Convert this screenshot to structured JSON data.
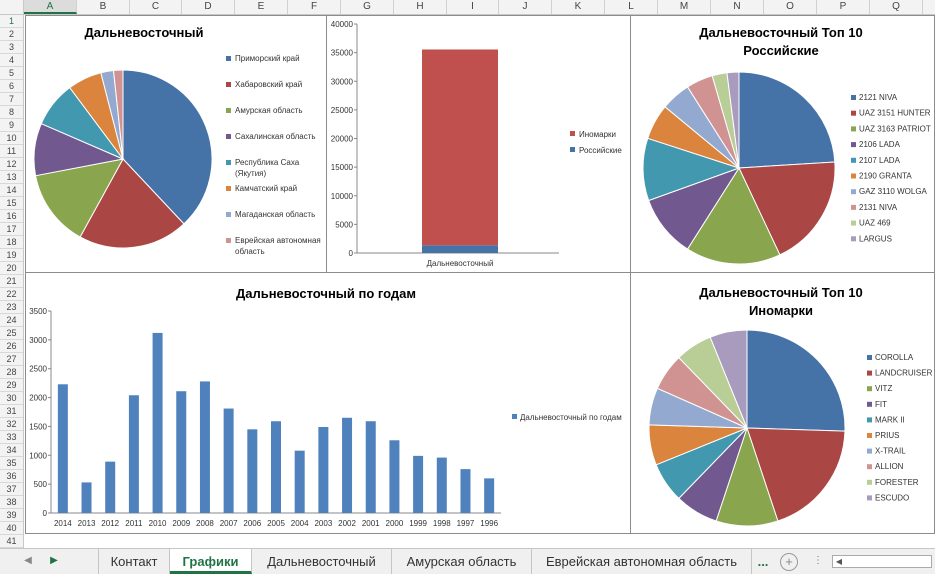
{
  "columns": [
    "A",
    "B",
    "C",
    "D",
    "E",
    "F",
    "G",
    "H",
    "I",
    "J",
    "K",
    "L",
    "M",
    "N",
    "O",
    "P",
    "Q"
  ],
  "rows": [
    "1",
    "2",
    "3",
    "4",
    "5",
    "6",
    "7",
    "8",
    "9",
    "10",
    "11",
    "12",
    "13",
    "14",
    "15",
    "16",
    "17",
    "18",
    "19",
    "20",
    "21",
    "22",
    "23",
    "24",
    "25",
    "26",
    "27",
    "28",
    "29",
    "30",
    "31",
    "32",
    "33",
    "34",
    "35",
    "36",
    "37",
    "38",
    "39",
    "40",
    "41"
  ],
  "tabs": {
    "items": [
      "Контакт",
      "Графики",
      "Дальневосточный",
      "Амурская область",
      "Еврейская автономная область"
    ],
    "active_index": 1,
    "more": "...",
    "add": "+"
  },
  "palette": [
    "#4572a7",
    "#aa4643",
    "#89a54e",
    "#71588f",
    "#4198af",
    "#db843d",
    "#93a9cf",
    "#d19392",
    "#b9cd96",
    "#a99bbd"
  ],
  "chart_data": [
    {
      "id": "pie-regions",
      "type": "pie",
      "title": "Дальневосточный",
      "labels": [
        "Приморский край",
        "Хабаровский край",
        "Амурская область",
        "Сахалинская область",
        "Республика Саха (Якутия)",
        "Камчатский край",
        "Магаданская область",
        "Еврейская автономная область"
      ],
      "legend_lines": [
        [
          "Приморский край"
        ],
        [
          "Хабаровский край"
        ],
        [
          "Амурская область"
        ],
        [
          "Сахалинская область"
        ],
        [
          "Республика Саха",
          "(Якутия)"
        ],
        [
          "Камчатский край"
        ],
        [
          "Магаданская область"
        ],
        [
          "Еврейская автономная",
          "область"
        ]
      ],
      "values": [
        38,
        20,
        14,
        9.5,
        8.3,
        6.2,
        2.3,
        1.7
      ]
    },
    {
      "id": "stacked-bar",
      "type": "bar",
      "categories": [
        "Дальневосточный"
      ],
      "series": [
        {
          "name": "Российские",
          "values": [
            1350
          ],
          "color": "#4572a7"
        },
        {
          "name": "Иномарки",
          "values": [
            34200
          ],
          "color": "#c0504d"
        }
      ],
      "legend": [
        "Иномарки",
        "Российские"
      ],
      "ylim": [
        0,
        40000
      ],
      "yticks": [
        0,
        5000,
        10000,
        15000,
        20000,
        25000,
        30000,
        35000,
        40000
      ]
    },
    {
      "id": "pie-russian",
      "type": "pie",
      "title": "Дальневосточный Топ 10 Российские",
      "title_lines": [
        "Дальневосточный Топ 10",
        "Российские"
      ],
      "labels": [
        "2121 NIVA",
        "UAZ 3151 HUNTER",
        "UAZ 3163 PATRIOT",
        "2106 LADA",
        "2107 LADA",
        "2190 GRANTA",
        "GAZ 3110 WOLGA",
        "2131 NIVA",
        "UAZ 469",
        "LARGUS"
      ],
      "values": [
        24,
        19,
        16,
        10.5,
        10.5,
        6,
        5,
        4.5,
        2.5,
        2
      ]
    },
    {
      "id": "bar-years",
      "type": "bar",
      "title": "Дальневосточный по годам",
      "categories": [
        "2014",
        "2013",
        "2012",
        "2011",
        "2010",
        "2009",
        "2008",
        "2007",
        "2006",
        "2005",
        "2004",
        "2003",
        "2002",
        "2001",
        "2000",
        "1999",
        "1998",
        "1997",
        "1996"
      ],
      "series": [
        {
          "name": "Дальневосточный по годам",
          "values": [
            2230,
            530,
            890,
            2040,
            3120,
            2110,
            2280,
            1810,
            1450,
            1590,
            1080,
            1490,
            1650,
            1590,
            1260,
            990,
            960,
            760,
            600
          ]
        }
      ],
      "ylim": [
        0,
        3500
      ],
      "yticks": [
        0,
        500,
        1000,
        1500,
        2000,
        2500,
        3000,
        3500
      ]
    },
    {
      "id": "pie-foreign",
      "type": "pie",
      "title": "Дальневосточный Топ 10 Иномарки",
      "title_lines": [
        "Дальневосточный Топ 10",
        "Иномарки"
      ],
      "labels": [
        "COROLLA",
        "LANDCRUISER",
        "VITZ",
        "FIT",
        "MARK II",
        "PRIUS",
        "X-TRAIL",
        "ALLION",
        "FORESTER",
        "ESCUDO"
      ],
      "values": [
        25,
        19,
        10,
        7,
        6.5,
        6.5,
        6,
        6,
        6,
        6
      ]
    }
  ]
}
